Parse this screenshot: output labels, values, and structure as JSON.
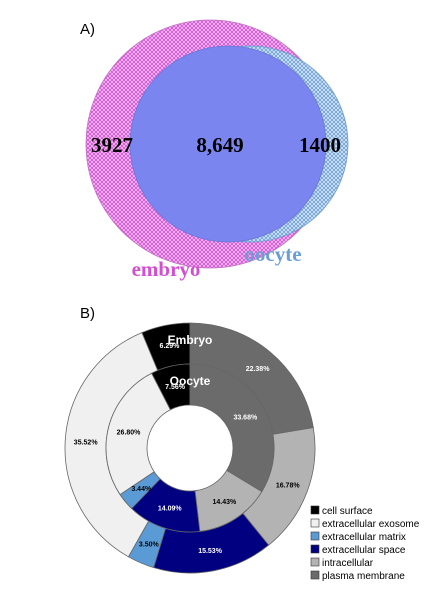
{
  "chart_data": [
    {
      "type": "venn",
      "panel_label": "A)",
      "sets": [
        {
          "name": "embryo",
          "only": "3927",
          "color": "#dd55dd"
        },
        {
          "name": "oocyte",
          "only": "1400",
          "color": "#6699cc"
        }
      ],
      "intersection": "8,649",
      "intersection_color": "#7b85ef"
    },
    {
      "type": "pie",
      "panel_label": "B)",
      "categories": [
        "cell surface",
        "extracellular exosome",
        "extracellular matrix",
        "extracellular space",
        "intracellular",
        "plasma membrane"
      ],
      "colors": [
        "#000000",
        "#f0f0f0",
        "#5b9bd5",
        "#000080",
        "#b3b3b3",
        "#6b6b6b"
      ],
      "series": [
        {
          "name": "Embryo",
          "values": [
            6.29,
            35.52,
            3.5,
            15.53,
            16.78,
            22.38
          ],
          "labels": [
            "6.29%",
            "35.52%",
            "3.50%",
            "15.53%",
            "16.78%",
            "22.38%"
          ]
        },
        {
          "name": "Oocyte",
          "values": [
            7.56,
            26.8,
            3.44,
            14.09,
            14.43,
            33.68
          ],
          "labels": [
            "7.56%",
            "26.80%",
            "3.44%",
            "14.09%",
            "14.43%",
            "33.68%"
          ]
        }
      ],
      "legend_position": "bottom-right"
    }
  ]
}
